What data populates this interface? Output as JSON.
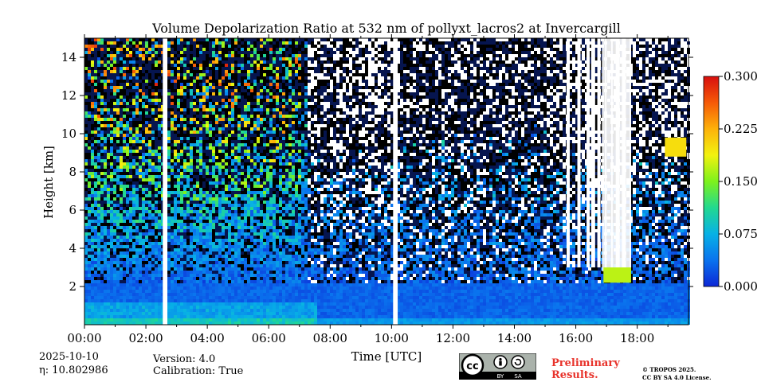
{
  "chart_data": {
    "type": "heatmap",
    "title": "Volume Depolarization Ratio at 532 nm of pollyxt_lacros2 at Invercargill",
    "xlabel": "Time [UTC]",
    "ylabel": "Height [km]",
    "x_ticks": [
      "00:00",
      "02:00",
      "04:00",
      "06:00",
      "08:00",
      "10:00",
      "12:00",
      "14:00",
      "16:00",
      "18:00"
    ],
    "x_range_hours": [
      0,
      19.67
    ],
    "y_ticks": [
      2,
      4,
      6,
      8,
      10,
      12,
      14
    ],
    "y_range_km": [
      0,
      15
    ],
    "colorbar": {
      "range": [
        0.0,
        0.3
      ],
      "ticks": [
        "0.000",
        "0.075",
        "0.150",
        "0.225",
        "0.300"
      ],
      "colormap": [
        "#0d27d6",
        "#0a73ee",
        "#07b1e6",
        "#22d990",
        "#7df21c",
        "#f2f20f",
        "#fdb20a",
        "#f55a08",
        "#d80f0f"
      ]
    },
    "data_gaps_hours": [
      [
        2.55,
        2.7
      ],
      [
        10.05,
        10.2
      ]
    ],
    "notes": "Near-surface layer (0-2 km) low depolarization ~0.02-0.06; high noisy signal above 4 km; cloud near 17:00 at ~2.5 km; elevated feature ~19:00 at ~9 km with ratio ~0.2"
  },
  "footer": {
    "date": "2025-10-10",
    "eta_label": "η: 10.802986",
    "version": "Version: 4.0",
    "calibration": "Calibration: True",
    "preliminary_line1": "Preliminary",
    "preliminary_line2": "Results.",
    "copyright_line1": "© TROPOS 2025.",
    "copyright_line2": "CC BY SA 4.0 License.",
    "cc_text": "cc",
    "by_label": "BY",
    "sa_label": "SA"
  }
}
